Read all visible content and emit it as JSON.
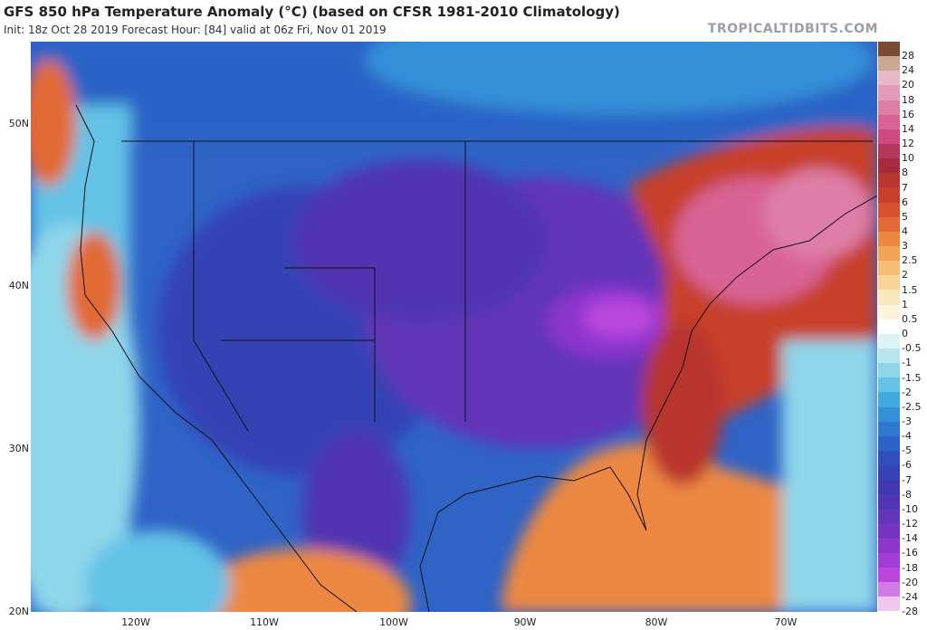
{
  "header": {
    "title": "GFS 850 hPa Temperature Anomaly (°C) (based on CFSR 1981-2010 Climatology)",
    "subtitle": "Init: 18z Oct 28 2019   Forecast Hour: [84]   valid at 06z Fri, Nov 01 2019",
    "brand": "TROPICALTIDBITS.COM"
  },
  "axes": {
    "lat_labels": [
      "50N",
      "40N",
      "30N",
      "20N"
    ],
    "lon_labels": [
      "120W",
      "110W",
      "100W",
      "90W",
      "80W",
      "70W"
    ]
  },
  "colorbar": {
    "labels": [
      "28",
      "24",
      "20",
      "18",
      "16",
      "14",
      "12",
      "10",
      "8",
      "7",
      "6",
      "5",
      "4",
      "3",
      "2.5",
      "2",
      "1.5",
      "1",
      "0.5",
      "0",
      "-0.5",
      "-1",
      "-1.5",
      "-2",
      "-2.5",
      "-3",
      "-4",
      "-5",
      "-6",
      "-7",
      "-8",
      "-10",
      "-12",
      "-14",
      "-16",
      "-18",
      "-20",
      "-24",
      "-28"
    ],
    "colors": [
      "#7a4a32",
      "#c9a793",
      "#e8b8c8",
      "#e49ab8",
      "#de7ea6",
      "#d86494",
      "#d04a80",
      "#b2385c",
      "#a52c3c",
      "#b8362e",
      "#c8402c",
      "#d8512e",
      "#e26a36",
      "#ec8842",
      "#f2a458",
      "#f6bd76",
      "#f9d499",
      "#fbe7be",
      "#fdf4dc",
      "#ffffff",
      "#def4f4",
      "#b8e6ee",
      "#8ed6ea",
      "#64c2e6",
      "#42a8e0",
      "#3690d8",
      "#2f78d0",
      "#2c63c6",
      "#2f50bc",
      "#3643b4",
      "#4038ae",
      "#5036b0",
      "#6236b8",
      "#7634c2",
      "#8c36cc",
      "#a23cd6",
      "#ba46de",
      "#d27ae6",
      "#f0c8ee"
    ]
  },
  "map": {
    "variable": "850 hPa temperature anomaly",
    "units": "°C",
    "features": [
      {
        "region": "Central and eastern US / Midwest",
        "anomaly_range": "-10 to -16",
        "color": "#7634c2"
      },
      {
        "region": "Rockies and Great Basin",
        "anomaly_range": "-6 to -10",
        "color": "#3643b4"
      },
      {
        "region": "Northeast US and Atlantic coast",
        "anomaly_range": "+6 to +14",
        "color": "#c8402c"
      },
      {
        "region": "Pacific Northwest coast",
        "anomaly_range": "+3 to +5",
        "color": "#e26a36"
      },
      {
        "region": "Gulf of Mexico and Caribbean",
        "anomaly_range": "+2 to +5",
        "color": "#ec8842"
      }
    ]
  }
}
